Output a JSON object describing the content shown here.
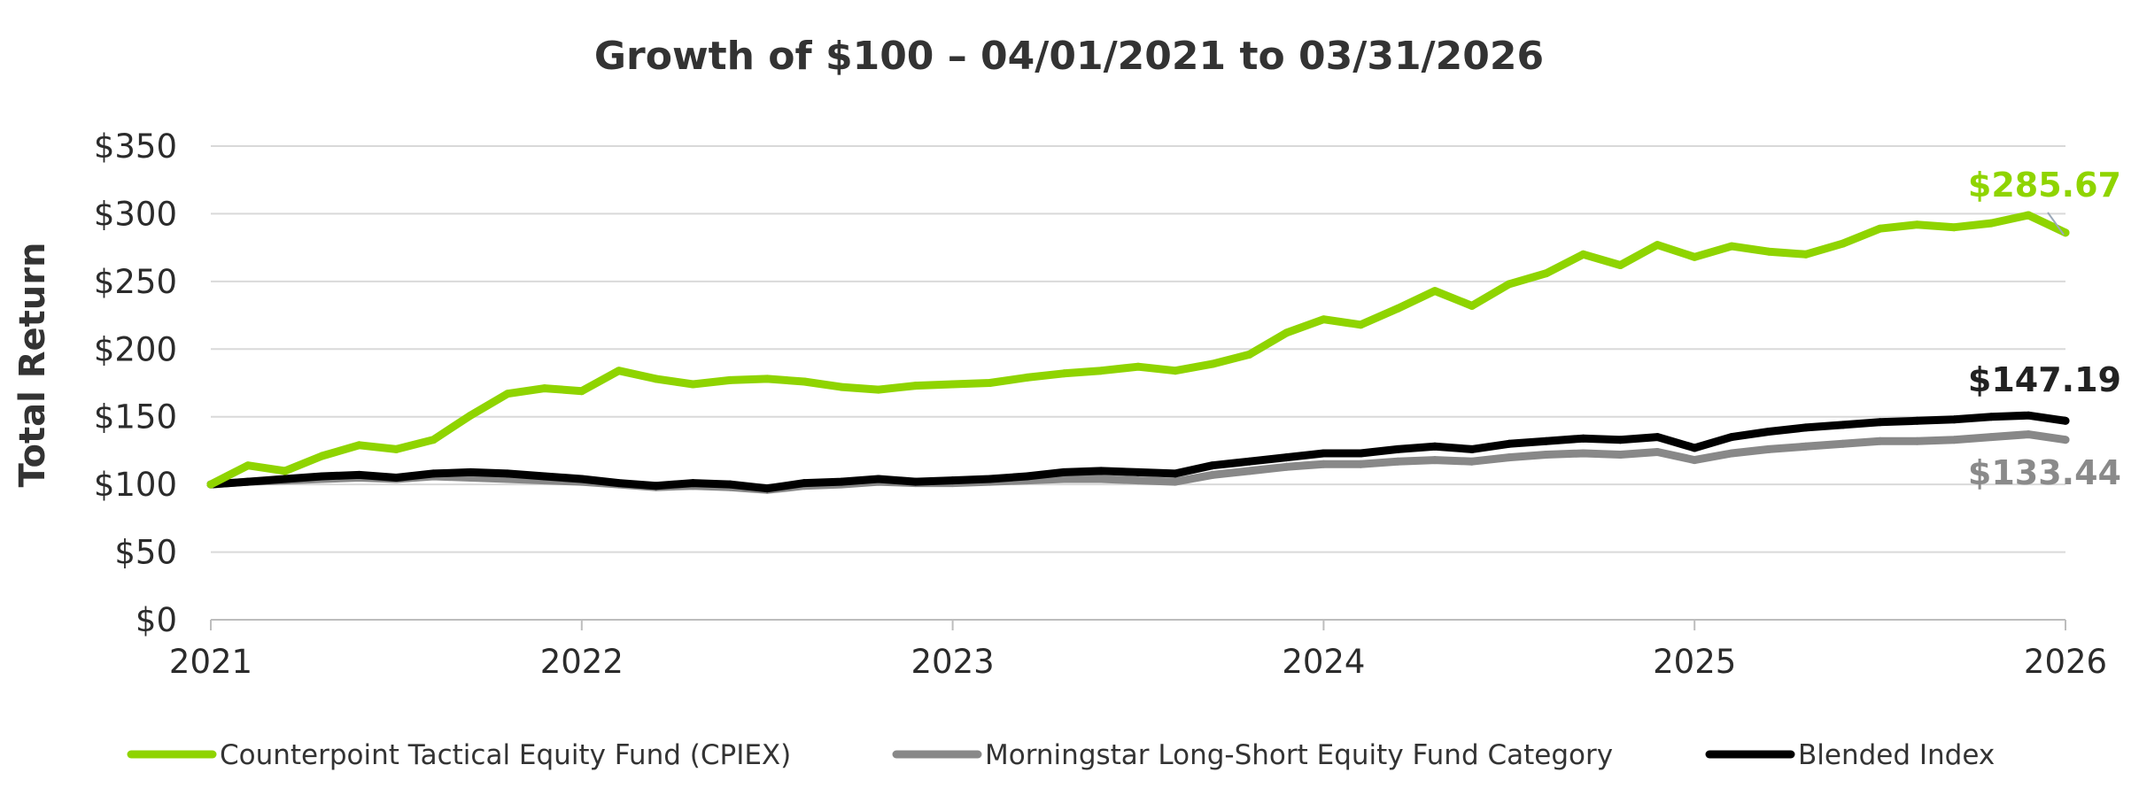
{
  "chart_data": {
    "type": "line",
    "title": "Growth of $100 – 04/01/2021 to 03/31/2026",
    "xlabel": "",
    "ylabel": "Total Return",
    "xlim": [
      2021,
      2026
    ],
    "ylim": [
      0,
      350
    ],
    "x_ticks": [
      {
        "value": 2021,
        "label": "2021"
      },
      {
        "value": 2022,
        "label": "2022"
      },
      {
        "value": 2023,
        "label": "2023"
      },
      {
        "value": 2024,
        "label": "2024"
      },
      {
        "value": 2025,
        "label": "2025"
      },
      {
        "value": 2026,
        "label": "2026"
      }
    ],
    "y_ticks": [
      {
        "value": 0,
        "label": "$0"
      },
      {
        "value": 50,
        "label": "$50"
      },
      {
        "value": 100,
        "label": "$100"
      },
      {
        "value": 150,
        "label": "$150"
      },
      {
        "value": 200,
        "label": "$200"
      },
      {
        "value": 250,
        "label": "$250"
      },
      {
        "value": 300,
        "label": "$300"
      },
      {
        "value": 350,
        "label": "$350"
      }
    ],
    "grid": true,
    "legend_position": "bottom",
    "series": [
      {
        "name": "Counterpoint Tactical Equity Fund (CPIEX)",
        "color": "#8fd400",
        "end_label": "$285.67",
        "x": [
          2021.0,
          2021.1,
          2021.2,
          2021.3,
          2021.4,
          2021.5,
          2021.6,
          2021.7,
          2021.8,
          2021.9,
          2022.0,
          2022.1,
          2022.2,
          2022.3,
          2022.4,
          2022.5,
          2022.6,
          2022.7,
          2022.8,
          2022.9,
          2023.0,
          2023.1,
          2023.2,
          2023.3,
          2023.4,
          2023.5,
          2023.6,
          2023.7,
          2023.8,
          2023.9,
          2024.0,
          2024.1,
          2024.2,
          2024.3,
          2024.4,
          2024.5,
          2024.6,
          2024.7,
          2024.8,
          2024.9,
          2025.0,
          2025.1,
          2025.2,
          2025.3,
          2025.4,
          2025.5,
          2025.6,
          2025.7,
          2025.8,
          2025.9,
          2026.0
        ],
        "y": [
          100,
          114,
          110,
          121,
          129,
          126,
          133,
          151,
          167,
          171,
          169,
          184,
          178,
          174,
          177,
          178,
          176,
          172,
          170,
          173,
          174,
          175,
          179,
          182,
          184,
          187,
          184,
          189,
          196,
          212,
          222,
          218,
          230,
          243,
          232,
          248,
          256,
          270,
          262,
          277,
          268,
          276,
          272,
          270,
          278,
          289,
          292,
          290,
          293,
          299,
          286
        ]
      },
      {
        "name": "Morningstar Long-Short Equity Fund Category",
        "color": "#888888",
        "end_label": "$133.44",
        "x": [
          2021.0,
          2021.1,
          2021.2,
          2021.3,
          2021.4,
          2021.5,
          2021.6,
          2021.7,
          2021.8,
          2021.9,
          2022.0,
          2022.1,
          2022.2,
          2022.3,
          2022.4,
          2022.5,
          2022.6,
          2022.7,
          2022.8,
          2022.9,
          2023.0,
          2023.1,
          2023.2,
          2023.3,
          2023.4,
          2023.5,
          2023.6,
          2023.7,
          2023.8,
          2023.9,
          2024.0,
          2024.1,
          2024.2,
          2024.3,
          2024.4,
          2024.5,
          2024.6,
          2024.7,
          2024.8,
          2024.9,
          2025.0,
          2025.1,
          2025.2,
          2025.3,
          2025.4,
          2025.5,
          2025.6,
          2025.7,
          2025.8,
          2025.9,
          2026.0
        ],
        "y": [
          100,
          102,
          103,
          104,
          105,
          104,
          106,
          105,
          104,
          103,
          102,
          100,
          98,
          99,
          98,
          96,
          99,
          100,
          102,
          101,
          101,
          102,
          103,
          104,
          104,
          103,
          102,
          107,
          110,
          113,
          115,
          115,
          117,
          118,
          117,
          120,
          122,
          123,
          122,
          124,
          118,
          123,
          126,
          128,
          130,
          132,
          132,
          133,
          135,
          137,
          133
        ]
      },
      {
        "name": "Blended Index",
        "color": "#000000",
        "end_label": "$147.19",
        "x": [
          2021.0,
          2021.1,
          2021.2,
          2021.3,
          2021.4,
          2021.5,
          2021.6,
          2021.7,
          2021.8,
          2021.9,
          2022.0,
          2022.1,
          2022.2,
          2022.3,
          2022.4,
          2022.5,
          2022.6,
          2022.7,
          2022.8,
          2022.9,
          2023.0,
          2023.1,
          2023.2,
          2023.3,
          2023.4,
          2023.5,
          2023.6,
          2023.7,
          2023.8,
          2023.9,
          2024.0,
          2024.1,
          2024.2,
          2024.3,
          2024.4,
          2024.5,
          2024.6,
          2024.7,
          2024.8,
          2024.9,
          2025.0,
          2025.1,
          2025.2,
          2025.3,
          2025.4,
          2025.5,
          2025.6,
          2025.7,
          2025.8,
          2025.9,
          2026.0
        ],
        "y": [
          100,
          102,
          104,
          106,
          107,
          105,
          108,
          109,
          108,
          106,
          104,
          101,
          99,
          101,
          100,
          97,
          101,
          102,
          104,
          102,
          103,
          104,
          106,
          109,
          110,
          109,
          108,
          114,
          117,
          120,
          123,
          123,
          126,
          128,
          126,
          130,
          132,
          134,
          133,
          135,
          127,
          135,
          139,
          142,
          144,
          146,
          147,
          148,
          150,
          151,
          147
        ]
      }
    ]
  }
}
